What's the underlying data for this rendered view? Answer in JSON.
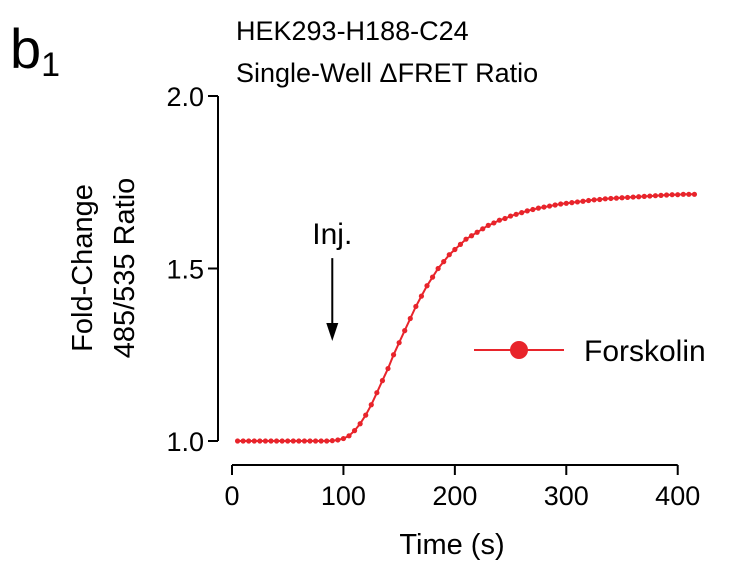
{
  "panel": {
    "letter": "b",
    "subscript": "1"
  },
  "title": [
    "HEK293-H188-C24",
    "Single-Well ΔFRET Ratio"
  ],
  "chart_data": {
    "type": "line",
    "xlabel": "Time (s)",
    "ylabel": [
      "Fold-Change",
      "485/535 Ratio"
    ],
    "xlim": [
      0,
      420
    ],
    "ylim": [
      1.0,
      2.0
    ],
    "xticks": [
      0,
      100,
      200,
      300,
      400
    ],
    "xtick_labels": [
      "0",
      "100",
      "200",
      "300",
      "400"
    ],
    "yticks": [
      1.0,
      1.5,
      2.0
    ],
    "ytick_labels": [
      "1.0",
      "1.5",
      "2.0"
    ],
    "grid": false,
    "legend_position": "right-middle",
    "series": [
      {
        "name": "Forskolin",
        "color": "#e8242b",
        "marker": "circle",
        "x": [
          5,
          10,
          15,
          20,
          25,
          30,
          35,
          40,
          45,
          50,
          55,
          60,
          65,
          70,
          75,
          80,
          85,
          90,
          95,
          100,
          105,
          110,
          115,
          120,
          125,
          130,
          135,
          140,
          145,
          150,
          155,
          160,
          165,
          170,
          175,
          180,
          185,
          190,
          195,
          200,
          205,
          210,
          215,
          220,
          225,
          230,
          235,
          240,
          245,
          250,
          255,
          260,
          265,
          270,
          275,
          280,
          285,
          290,
          295,
          300,
          305,
          310,
          315,
          320,
          325,
          330,
          335,
          340,
          345,
          350,
          355,
          360,
          365,
          370,
          375,
          380,
          385,
          390,
          395,
          400,
          405,
          410,
          415
        ],
        "y": [
          1.0,
          1.0,
          1.0,
          1.0,
          1.0,
          1.0,
          1.0,
          1.0,
          1.0,
          1.0,
          1.0,
          1.0,
          1.0,
          1.0,
          1.0,
          1.0,
          1.0,
          1.001,
          1.003,
          1.007,
          1.015,
          1.03,
          1.05,
          1.075,
          1.105,
          1.14,
          1.175,
          1.21,
          1.25,
          1.285,
          1.32,
          1.355,
          1.39,
          1.42,
          1.45,
          1.475,
          1.5,
          1.52,
          1.54,
          1.555,
          1.57,
          1.585,
          1.595,
          1.605,
          1.615,
          1.625,
          1.632,
          1.64,
          1.645,
          1.652,
          1.657,
          1.662,
          1.667,
          1.671,
          1.675,
          1.678,
          1.681,
          1.684,
          1.687,
          1.689,
          1.691,
          1.693,
          1.695,
          1.697,
          1.699,
          1.7,
          1.702,
          1.703,
          1.704,
          1.705,
          1.706,
          1.707,
          1.708,
          1.709,
          1.71,
          1.711,
          1.712,
          1.713,
          1.714,
          1.714,
          1.715,
          1.715,
          1.715
        ]
      }
    ],
    "annotations": [
      {
        "text": "Inj.",
        "x": 90,
        "arrow_from_y": 1.53,
        "arrow_to_y": 1.29
      }
    ]
  }
}
